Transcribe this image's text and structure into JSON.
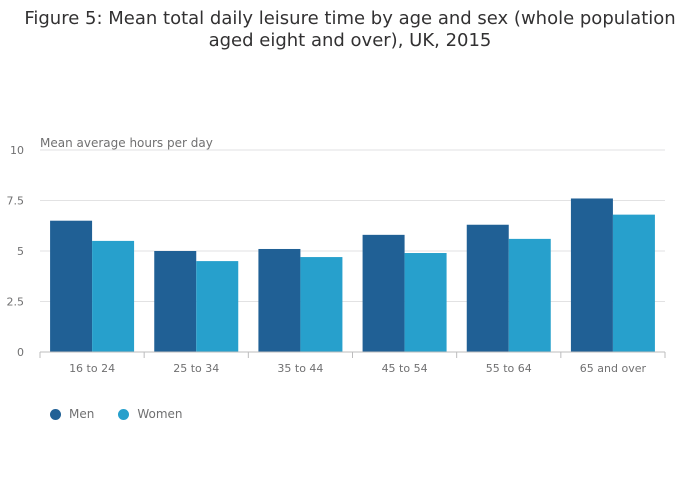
{
  "title": {
    "line1": "Figure 5: Mean total daily leisure time by age and sex (whole population",
    "line2": "aged eight and over), UK, 2015"
  },
  "chart_data": {
    "type": "bar",
    "title": "Figure 5: Mean total daily leisure time by age and sex (whole population aged eight and over), UK, 2015",
    "ylabel": "Mean average hours per day",
    "xlabel": "",
    "ylim": [
      0,
      10
    ],
    "yticks": [
      0,
      2.5,
      5,
      7.5,
      10
    ],
    "ytick_labels": [
      "0",
      "2.5",
      "5",
      "7.5",
      "10"
    ],
    "categories": [
      "16 to 24",
      "25 to 34",
      "35 to 44",
      "45 to 54",
      "55 to 64",
      "65 and over"
    ],
    "series": [
      {
        "name": "Men",
        "color": "#206095",
        "values": [
          6.5,
          5.0,
          5.1,
          5.8,
          6.3,
          7.6
        ]
      },
      {
        "name": "Women",
        "color": "#27a0cc",
        "values": [
          5.5,
          4.5,
          4.7,
          4.9,
          5.6,
          6.8
        ]
      }
    ],
    "grid": true,
    "legend_position": "bottom-left"
  }
}
